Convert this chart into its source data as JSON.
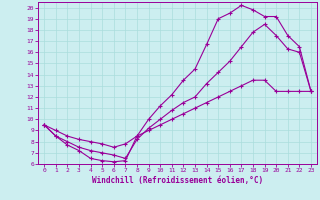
{
  "xlabel": "Windchill (Refroidissement éolien,°C)",
  "bg_color": "#cceef0",
  "grid_color": "#aadddd",
  "line_color": "#990099",
  "xlim": [
    -0.5,
    23.5
  ],
  "ylim": [
    6,
    20.5
  ],
  "xticks": [
    0,
    1,
    2,
    3,
    4,
    5,
    6,
    7,
    8,
    9,
    10,
    11,
    12,
    13,
    14,
    15,
    16,
    17,
    18,
    19,
    20,
    21,
    22,
    23
  ],
  "yticks": [
    6,
    7,
    8,
    9,
    10,
    11,
    12,
    13,
    14,
    15,
    16,
    17,
    18,
    19,
    20
  ],
  "line1_x": [
    0,
    1,
    2,
    3,
    4,
    5,
    6,
    7,
    8,
    9,
    10,
    11,
    12,
    13,
    14,
    15,
    16,
    17,
    18,
    19,
    20,
    21,
    22,
    23
  ],
  "line1_y": [
    9.5,
    8.5,
    7.7,
    7.2,
    6.5,
    6.3,
    6.2,
    6.3,
    8.5,
    10.0,
    11.2,
    12.2,
    13.5,
    14.5,
    16.7,
    19.0,
    19.5,
    20.2,
    19.8,
    19.2,
    19.2,
    17.5,
    16.5,
    12.5
  ],
  "line2_x": [
    0,
    1,
    2,
    3,
    4,
    5,
    6,
    7,
    8,
    9,
    10,
    11,
    12,
    13,
    14,
    15,
    16,
    17,
    18,
    19,
    20,
    21,
    22,
    23
  ],
  "line2_y": [
    9.5,
    8.5,
    8.0,
    7.5,
    7.2,
    7.0,
    6.8,
    6.5,
    8.2,
    9.2,
    10.0,
    10.8,
    11.5,
    12.0,
    13.2,
    14.2,
    15.2,
    16.5,
    17.8,
    18.5,
    17.5,
    16.3,
    16.0,
    12.5
  ],
  "line3_x": [
    0,
    1,
    2,
    3,
    4,
    5,
    6,
    7,
    8,
    9,
    10,
    11,
    12,
    13,
    14,
    15,
    16,
    17,
    18,
    19,
    20,
    21,
    22,
    23
  ],
  "line3_y": [
    9.5,
    9.0,
    8.5,
    8.2,
    8.0,
    7.8,
    7.5,
    7.8,
    8.5,
    9.0,
    9.5,
    10.0,
    10.5,
    11.0,
    11.5,
    12.0,
    12.5,
    13.0,
    13.5,
    13.5,
    12.5,
    12.5,
    12.5,
    12.5
  ]
}
